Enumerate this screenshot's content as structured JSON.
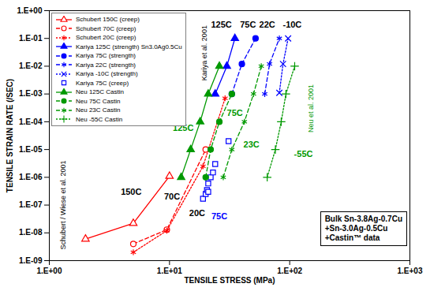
{
  "chart_data": {
    "type": "line",
    "x_label": "TENSILE STRESS (MPa)",
    "y_label": "TENSILE STRAIN RATE (/SEC)",
    "log": true,
    "grid": false,
    "legend": "upper left",
    "xlim": [
      1,
      1000
    ],
    "ylim": [
      1e-09,
      1
    ],
    "xticks": [
      {
        "value": 1,
        "label": "1.E+00"
      },
      {
        "value": 10,
        "label": "1.E+01"
      },
      {
        "value": 100,
        "label": "1.E+02"
      },
      {
        "value": 1000,
        "label": "1.E+03"
      }
    ],
    "yticks": [
      {
        "value": 1e-09,
        "label": "1.E-09"
      },
      {
        "value": 1e-08,
        "label": "1.E-08"
      },
      {
        "value": 1e-07,
        "label": "1.E-07"
      },
      {
        "value": 1e-06,
        "label": "1.E-06"
      },
      {
        "value": 1e-05,
        "label": "1.E-05"
      },
      {
        "value": 0.0001,
        "label": "1.E-04"
      },
      {
        "value": 0.001,
        "label": "1.E-03"
      },
      {
        "value": 0.01,
        "label": "1.E-02"
      },
      {
        "value": 0.1,
        "label": "1.E-01"
      },
      {
        "value": 1,
        "label": "1.E+00"
      }
    ],
    "series": [
      {
        "name": "Schubert 150C (creep)",
        "color": "#ff0000",
        "marker": "triangle-open",
        "line_style": "solid",
        "x": [
          2,
          5,
          10
        ],
        "values": [
          6e-09,
          2.2e-08,
          1.1e-06
        ]
      },
      {
        "name": "Schubert 70C (creep)",
        "color": "#ff0000",
        "marker": "circle-open",
        "line_style": "dashed",
        "x": [
          5,
          9.5,
          20
        ],
        "values": [
          4e-09,
          1.3e-08,
          1e-05
        ]
      },
      {
        "name": "Schubert 20C (creep)",
        "color": "#ff0000",
        "marker": "asterisk",
        "line_style": "dotted",
        "x": [
          5,
          9.5,
          19,
          29
        ],
        "values": [
          2e-09,
          1.2e-08,
          2.5e-06,
          0.0007
        ]
      },
      {
        "name": "Kariya 125C (strength) Sn3.0Ag0.5Cu",
        "color": "#0000ff",
        "marker": "triangle",
        "line_style": "solid",
        "x": [
          24,
          30,
          35
        ],
        "values": [
          0.001,
          0.01,
          0.1
        ]
      },
      {
        "name": "Kariya 75C (strength)",
        "color": "#0000ff",
        "marker": "circle",
        "line_style": "dashed",
        "x": [
          33,
          40,
          52
        ],
        "values": [
          0.001,
          0.012,
          0.1
        ]
      },
      {
        "name": "Kariya 22C (strength)",
        "color": "#0000ff",
        "marker": "asterisk",
        "line_style": "dashed",
        "x": [
          62,
          68,
          82
        ],
        "values": [
          0.001,
          0.012,
          0.1
        ]
      },
      {
        "name": "Kariya -10C (strength)",
        "color": "#0000ff",
        "marker": "times",
        "line_style": "dotted",
        "x": [
          82,
          88,
          97
        ],
        "values": [
          0.0011,
          0.012,
          0.1
        ]
      },
      {
        "name": "Kariya 75C (creep)",
        "color": "#0000ff",
        "marker": "square-open",
        "line_style": "none",
        "x": [
          19,
          20,
          20.5,
          21,
          21,
          22,
          23,
          24,
          31
        ],
        "values": [
          1.7e-07,
          2.5e-07,
          3.5e-07,
          3e-07,
          6e-07,
          1e-06,
          1.5e-06,
          3e-06,
          2e-05
        ]
      },
      {
        "name": "Neu 125C Castin",
        "color": "#009900",
        "marker": "triangle",
        "line_style": "solid",
        "x": [
          12.5,
          15,
          18,
          21,
          26
        ],
        "values": [
          1e-06,
          1e-05,
          0.0001,
          0.001,
          0.01
        ]
      },
      {
        "name": "Neu 75C Castin",
        "color": "#009900",
        "marker": "circle",
        "line_style": "dashed",
        "x": [
          20,
          22,
          26,
          33
        ],
        "values": [
          1e-06,
          1e-05,
          0.0001,
          0.001
        ]
      },
      {
        "name": "Neu 23C Castin",
        "color": "#009900",
        "marker": "asterisk",
        "line_style": "dashed",
        "x": [
          28,
          33,
          42,
          50,
          58
        ],
        "values": [
          1e-06,
          1e-05,
          0.0001,
          0.001,
          0.01
        ]
      },
      {
        "name": "Neu -55C Castin",
        "color": "#009900",
        "marker": "plus",
        "line_style": "dotted",
        "x": [
          65,
          76,
          85,
          93,
          110
        ],
        "values": [
          1e-06,
          1e-05,
          0.0001,
          0.001,
          0.01
        ]
      }
    ],
    "annotations": [
      {
        "text": "125C",
        "x": 27,
        "y": 0.3,
        "color": "#000000"
      },
      {
        "text": "75C",
        "x": 45,
        "y": 0.3,
        "color": "#000000"
      },
      {
        "text": "22C",
        "x": 65,
        "y": 0.3,
        "color": "#000000"
      },
      {
        "text": "-10C",
        "x": 105,
        "y": 0.3,
        "color": "#000000"
      },
      {
        "text": "125C",
        "x": 13,
        "y": 6e-05,
        "color": "#009900"
      },
      {
        "text": "75C",
        "x": 35,
        "y": 0.0002,
        "color": "#009900"
      },
      {
        "text": "23C",
        "x": 48,
        "y": 1.5e-05,
        "color": "#009900"
      },
      {
        "text": "-55C",
        "x": 130,
        "y": 7e-06,
        "color": "#009900"
      },
      {
        "text": "150C",
        "x": 4.8,
        "y": 3e-07,
        "color": "#000000"
      },
      {
        "text": "70C",
        "x": 10.5,
        "y": 2e-07,
        "color": "#000000"
      },
      {
        "text": "20C",
        "x": 17,
        "y": 5e-08,
        "color": "#000000"
      },
      {
        "text": "75C",
        "x": 26,
        "y": 4e-08,
        "color": "#0000ff"
      }
    ],
    "side_notes": [
      {
        "text": "Kariya et al. 2001",
        "x": 19.5,
        "y": 0.03,
        "color": "#000000"
      },
      {
        "text": "Neu et al. 2001",
        "x": 150,
        "y": 0.0003,
        "color": "#009900"
      },
      {
        "text": "Schubert / Wiese et al. 2001",
        "x": 1.3,
        "y": 1e-07,
        "color": "#000000"
      }
    ],
    "note": [
      "Bulk Sn-3.8Ag-0.7Cu",
      "+Sn-3.0Ag-0.5Cu",
      "+Castin™ data"
    ]
  }
}
